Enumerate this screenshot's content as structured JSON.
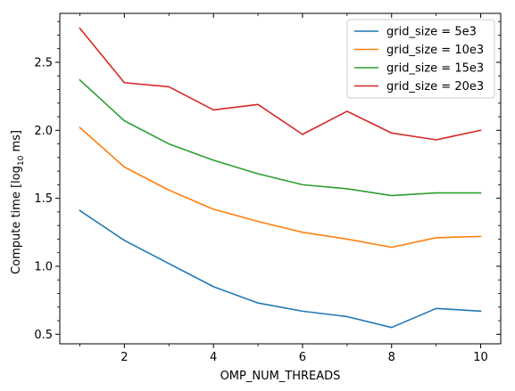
{
  "chart_data": {
    "type": "line",
    "title": "",
    "xlabel": "OMP_NUM_THREADS",
    "ylabel_parts": {
      "prefix": "Compute time [log",
      "subscript": "10",
      "suffix": " ms]"
    },
    "xlim": [
      0.55,
      10.45
    ],
    "ylim": [
      0.43,
      2.86
    ],
    "xticks": [
      2,
      4,
      6,
      8,
      10
    ],
    "xtick_labels": [
      "2",
      "4",
      "6",
      "8",
      "10"
    ],
    "xminor_ticks": [
      1,
      3,
      5,
      7,
      9
    ],
    "yticks": [
      0.5,
      1.0,
      1.5,
      2.0,
      2.5
    ],
    "ytick_labels": [
      "0.5",
      "1.0",
      "1.5",
      "2.0",
      "2.5"
    ],
    "yminor_step": 0.1,
    "grid": false,
    "legend_position": "top-right",
    "x": [
      1,
      2,
      3,
      4,
      5,
      6,
      7,
      8,
      9,
      10
    ],
    "series": [
      {
        "name": "grid_size = 5e3",
        "color": "#1f77b4",
        "values": [
          1.41,
          1.19,
          1.02,
          0.85,
          0.73,
          0.67,
          0.63,
          0.55,
          0.69,
          0.67
        ]
      },
      {
        "name": "grid_size = 10e3",
        "color": "#ff7f0e",
        "values": [
          2.02,
          1.73,
          1.56,
          1.42,
          1.33,
          1.25,
          1.2,
          1.14,
          1.21,
          1.22
        ]
      },
      {
        "name": "grid_size = 15e3",
        "color": "#2ca02c",
        "values": [
          2.37,
          2.07,
          1.9,
          1.78,
          1.68,
          1.6,
          1.57,
          1.52,
          1.54,
          1.54
        ]
      },
      {
        "name": "grid_size = 20e3",
        "color": "#d62728",
        "values": [
          2.75,
          2.35,
          2.32,
          2.15,
          2.19,
          1.97,
          2.14,
          1.98,
          1.93,
          2.0
        ]
      }
    ]
  }
}
